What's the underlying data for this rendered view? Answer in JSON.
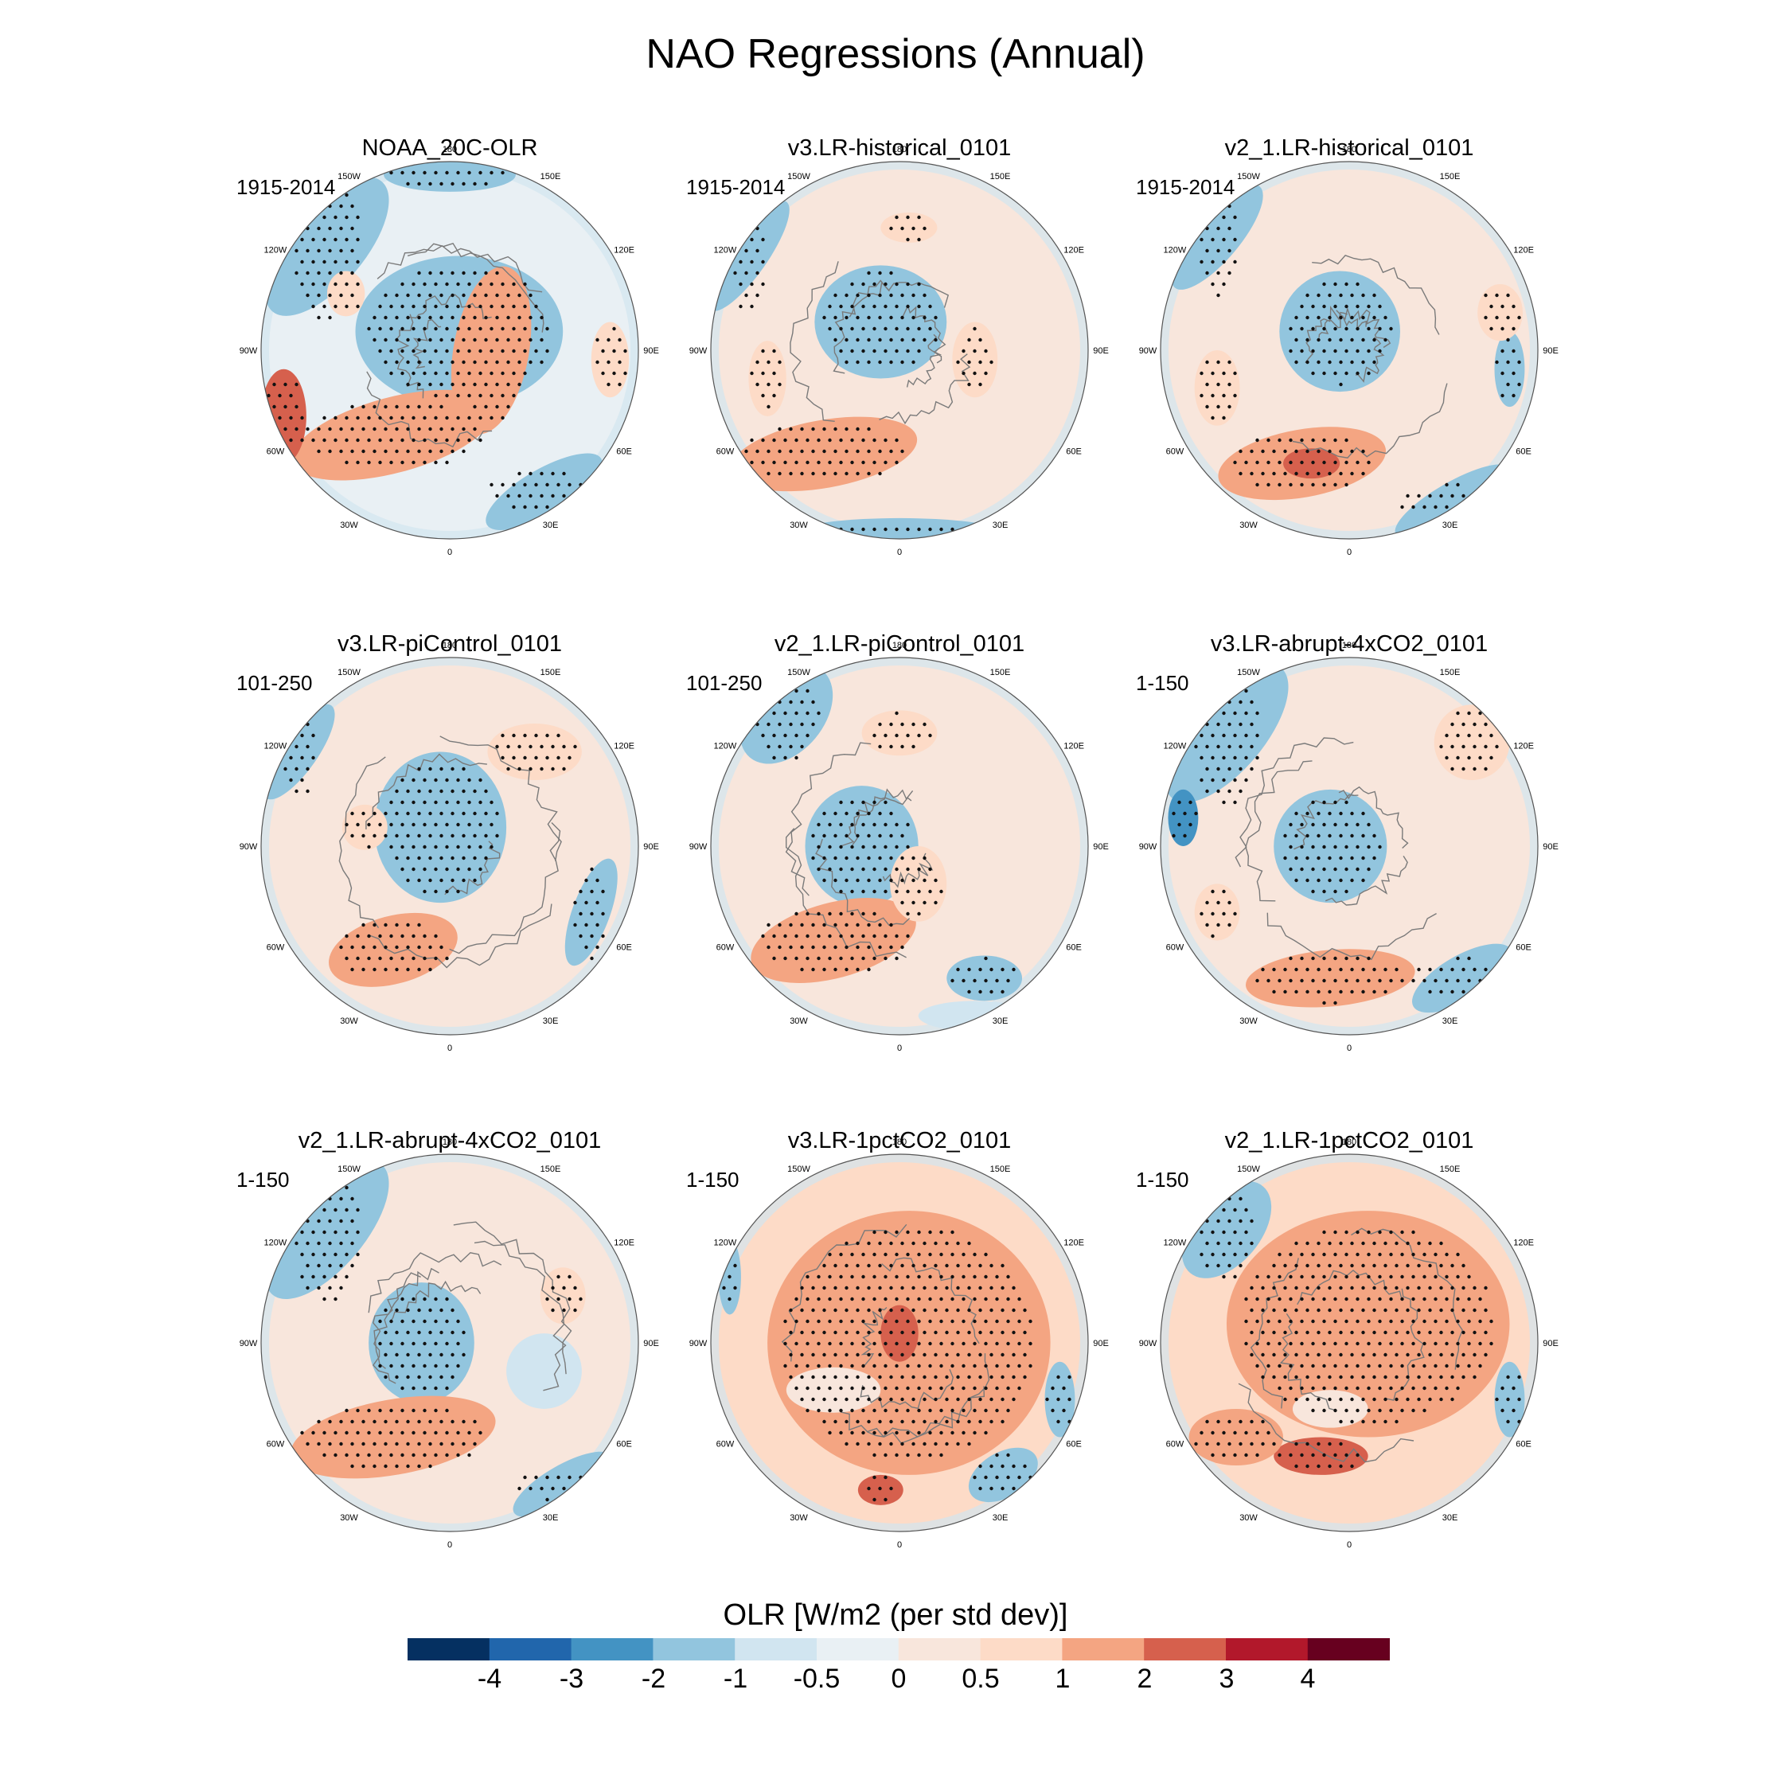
{
  "title": "NAO Regressions (Annual)",
  "colorbar": {
    "label": "OLR [W/m2 (per std dev)]",
    "ticks": [
      "-4",
      "-3",
      "-2",
      "-1",
      "-0.5",
      "0",
      "0.5",
      "1",
      "2",
      "3",
      "4"
    ],
    "colors": [
      "#053061",
      "#2166ac",
      "#4393c3",
      "#92c5de",
      "#d1e5f0",
      "#e9f0f4",
      "#f8e6dc",
      "#fddbc7",
      "#f4a582",
      "#d6604d",
      "#b2182b",
      "#67001f"
    ]
  },
  "longitude_labels": [
    "180",
    "150E",
    "120E",
    "90E",
    "60E",
    "30E",
    "0",
    "30W",
    "60W",
    "90W",
    "120W",
    "150W"
  ],
  "panels": [
    {
      "title": "NOAA_20C-OLR",
      "period": "1915-2014"
    },
    {
      "title": "v3.LR-historical_0101",
      "period": "1915-2014"
    },
    {
      "title": "v2_1.LR-historical_0101",
      "period": "1915-2014"
    },
    {
      "title": "v3.LR-piControl_0101",
      "period": "101-250"
    },
    {
      "title": "v2_1.LR-piControl_0101",
      "period": "101-250"
    },
    {
      "title": "v3.LR-abrupt-4xCO2_0101",
      "period": "1-150"
    },
    {
      "title": "v2_1.LR-abrupt-4xCO2_0101",
      "period": "1-150"
    },
    {
      "title": "v3.LR-1pctCO2_0101",
      "period": "1-150"
    },
    {
      "title": "v2_1.LR-1pctCO2_0101",
      "period": "1-150"
    }
  ]
}
